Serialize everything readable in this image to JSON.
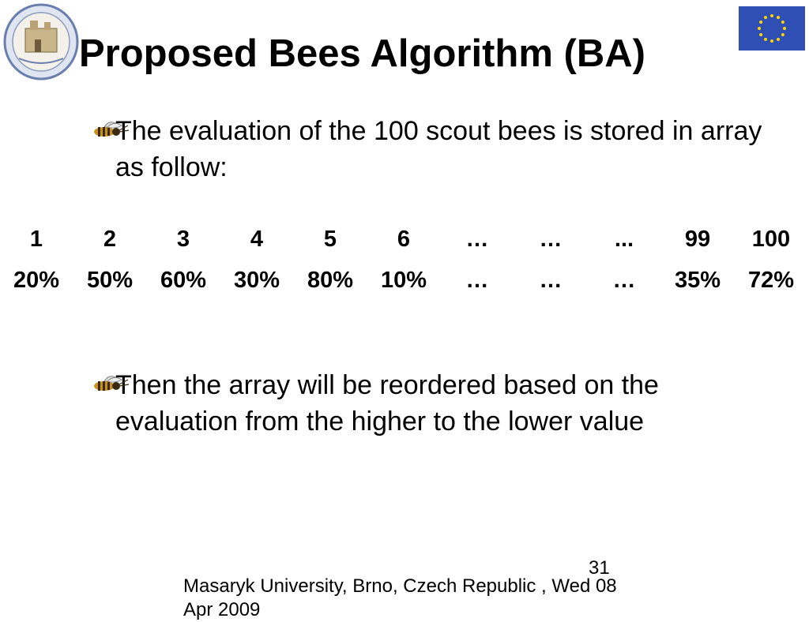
{
  "slide": {
    "title": "Proposed Bees Algorithm (BA)",
    "bullets": [
      "The evaluation of the 100 scout bees is stored in array as follow:",
      "Then the array will be reordered based on the evaluation from the higher to the lower value"
    ],
    "array": {
      "indices": [
        "1",
        "2",
        "3",
        "4",
        "5",
        "6",
        "…",
        "…",
        "...",
        "99",
        "100"
      ],
      "values": [
        "20%",
        "50%",
        "60%",
        "30%",
        "80%",
        "10%",
        "…",
        "…",
        "…",
        "35%",
        "72%"
      ]
    },
    "page_number": "31",
    "footer": "Masaryk University, Brno, Czech Republic , Wed 08 Apr 2009"
  },
  "icons": {
    "logo": "university-seal-icon",
    "flag": "eu-flag-icon",
    "bullet": "bee-icon"
  },
  "colors": {
    "flag_blue": "#2f4fb4",
    "flag_star": "#ffd400",
    "seal_ring": "#6b7fae"
  }
}
